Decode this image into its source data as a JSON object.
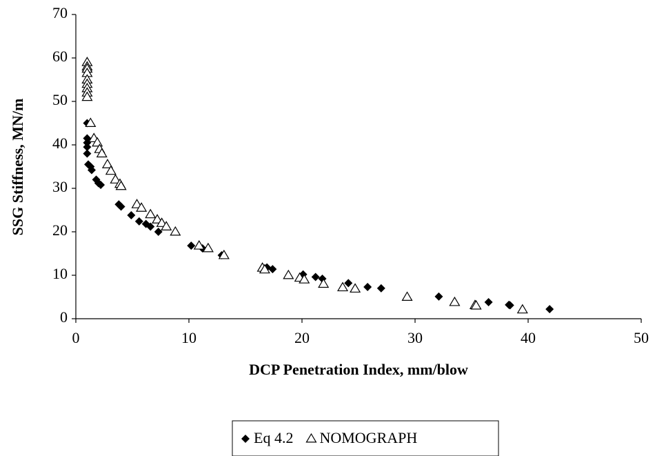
{
  "chart_data": {
    "type": "scatter",
    "x_label": "DCP Penetration Index, mm/blow",
    "y_label": "SSG Stiffness, MN/m",
    "xlim": [
      0,
      50
    ],
    "xticks": [
      0,
      10,
      20,
      30,
      40,
      50
    ],
    "ylim": [
      0,
      70
    ],
    "yticks": [
      0,
      10,
      20,
      30,
      40,
      50,
      60,
      70
    ],
    "legend": "bottom",
    "series": [
      {
        "name": "Eq 4.2",
        "color": "#000000",
        "marker": "diamond",
        "x": [
          1.0,
          1.0,
          1.0,
          1.0,
          1.0,
          1.1,
          1.3,
          1.4,
          1.8,
          2.0,
          2.2,
          3.8,
          4.0,
          4.9,
          5.6,
          6.2,
          6.6,
          7.3,
          10.2,
          11.2,
          12.9,
          16.9,
          17.4,
          20.1,
          21.2,
          21.8,
          24.1,
          25.8,
          27.0,
          32.1,
          36.5,
          38.3,
          38.4,
          41.9
        ],
        "values": [
          45,
          41.5,
          40.5,
          39.5,
          38,
          35.5,
          35,
          34.2,
          32,
          31.2,
          30.8,
          26.3,
          25.8,
          23.8,
          22.4,
          21.8,
          21.2,
          20,
          16.8,
          16.2,
          14.6,
          11.8,
          11.4,
          10.2,
          9.6,
          9.2,
          8.2,
          7.3,
          7.0,
          5.1,
          3.8,
          3.2,
          3.1,
          2.2
        ]
      },
      {
        "name": "NOMOGRAPH",
        "color": "#000000",
        "marker": "triangle",
        "x": [
          1,
          1,
          1,
          1,
          1,
          1,
          1,
          1,
          1,
          1.3,
          1.6,
          1.9,
          2.1,
          2.3,
          2.8,
          3.1,
          3.5,
          3.9,
          4.0,
          5.4,
          5.8,
          6.6,
          7.2,
          7.6,
          8.0,
          8.8,
          10.9,
          11.7,
          13.1,
          16.5,
          16.7,
          18.8,
          19.8,
          20.2,
          21.9,
          23.6,
          24.7,
          29.3,
          33.5,
          35.3,
          35.4,
          39.5
        ],
        "values": [
          59,
          58,
          57.5,
          56.5,
          55,
          54,
          53,
          52,
          51,
          45,
          41.5,
          40.5,
          39,
          38,
          35.5,
          34,
          32,
          31,
          30.5,
          26.3,
          25.5,
          24,
          22.8,
          22,
          21.2,
          20,
          16.8,
          16.2,
          14.6,
          11.7,
          11.3,
          10,
          9.4,
          9,
          8,
          7.2,
          6.9,
          5,
          3.8,
          3.1,
          3,
          2.1
        ]
      }
    ]
  }
}
